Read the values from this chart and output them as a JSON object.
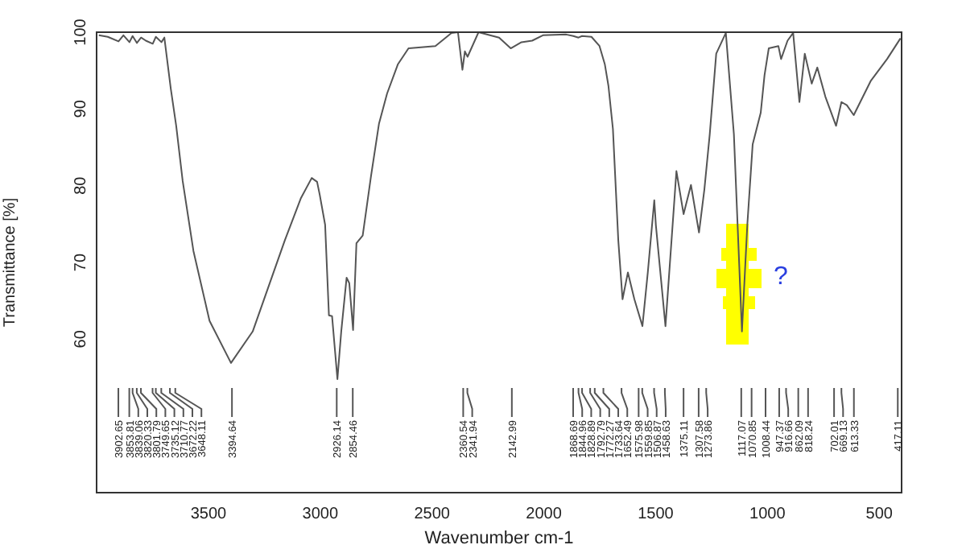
{
  "chart_data": {
    "type": "line",
    "xlabel": "Wavenumber cm-1",
    "ylabel": "Transmittance [%]",
    "xlim": [
      4000,
      400
    ],
    "ylim": [
      40,
      100
    ],
    "xticks": [
      3500,
      3000,
      2500,
      2000,
      1500,
      1000,
      500
    ],
    "yticks": [
      60,
      70,
      80,
      90,
      100
    ],
    "grid": false,
    "legend": false,
    "marker": "none",
    "line_style": "solid",
    "series": [
      {
        "color": "#555555",
        "x": [
          3990,
          3950,
          3902,
          3880,
          3853,
          3839,
          3820,
          3801,
          3780,
          3749,
          3735,
          3710,
          3697,
          3688,
          3668,
          3644,
          3615,
          3567,
          3495,
          3399,
          3302,
          3158,
          3086,
          3038,
          3014,
          3002,
          2978,
          2961,
          2947,
          2923,
          2906,
          2882,
          2870,
          2853,
          2838,
          2810,
          2773,
          2737,
          2701,
          2653,
          2605,
          2485,
          2413,
          2384,
          2364,
          2353,
          2341,
          2292,
          2200,
          2148,
          2100,
          2052,
          2004,
          1900,
          1868,
          1845,
          1829,
          1787,
          1751,
          1727,
          1711,
          1691,
          1667,
          1648,
          1624,
          1595,
          1559,
          1535,
          1506,
          1499,
          1456,
          1407,
          1375,
          1342,
          1306,
          1282,
          1258,
          1229,
          1186,
          1150,
          1114,
          1090,
          1066,
          1030,
          1013,
          994,
          951,
          939,
          910,
          885,
          857,
          833,
          802,
          777,
          741,
          693,
          669,
          645,
          614,
          537,
          465,
          405
        ],
        "values": [
          99.6,
          99.4,
          98.8,
          99.6,
          98.7,
          99.5,
          98.6,
          99.3,
          98.9,
          98.5,
          99.4,
          98.7,
          99.3,
          97.2,
          92.6,
          87.8,
          80.6,
          71.5,
          62.4,
          56.9,
          61,
          72.9,
          78.4,
          81,
          80.5,
          78.8,
          74.9,
          63.1,
          63,
          54.8,
          61,
          68,
          67.3,
          61.2,
          72.5,
          73.5,
          81.2,
          88.1,
          92,
          95.8,
          97.9,
          98.2,
          99.9,
          100,
          95.1,
          97.5,
          96.8,
          100,
          99.3,
          97.9,
          98.7,
          98.9,
          99.6,
          99.7,
          99.5,
          99.3,
          99.5,
          99.4,
          98.2,
          95.8,
          93,
          87.4,
          72.9,
          65.2,
          68.7,
          65.2,
          61.7,
          68.7,
          78.1,
          74.9,
          61.7,
          81.9,
          76.3,
          80.1,
          73.9,
          79.5,
          86.7,
          97.2,
          99.9,
          86.7,
          61,
          74.9,
          85.4,
          89.5,
          94.4,
          97.9,
          98.2,
          96.5,
          98.9,
          99.9,
          90.9,
          97.2,
          93.3,
          95.4,
          91.6,
          87.8,
          90.9,
          90.5,
          89.2,
          93.7,
          96.5,
          99.2
        ]
      }
    ],
    "annotations": [
      {
        "text": "3902.65",
        "x": 3902.65
      },
      {
        "text": "3853.81",
        "x": 3853.81
      },
      {
        "text": "3839.06",
        "x": 3839.06
      },
      {
        "text": "3820.33",
        "x": 3820.33
      },
      {
        "text": "3801.79",
        "x": 3801.79
      },
      {
        "text": "3749.65",
        "x": 3749.65
      },
      {
        "text": "3735.12",
        "x": 3735.12
      },
      {
        "text": "3710.77",
        "x": 3710.77
      },
      {
        "text": "3672.22",
        "x": 3672.22
      },
      {
        "text": "3648.11",
        "x": 3648.11
      },
      {
        "text": "3394.64",
        "x": 3394.64
      },
      {
        "text": "2926.14",
        "x": 2926.14
      },
      {
        "text": "2854.46",
        "x": 2854.46
      },
      {
        "text": "2360.54",
        "x": 2360.54
      },
      {
        "text": "2341.94",
        "x": 2341.94
      },
      {
        "text": "2142.99",
        "x": 2142.99
      },
      {
        "text": "1868.69",
        "x": 1868.69
      },
      {
        "text": "1844.96",
        "x": 1844.96
      },
      {
        "text": "1828.89",
        "x": 1828.89
      },
      {
        "text": "1792.79",
        "x": 1792.79
      },
      {
        "text": "1772.27",
        "x": 1772.27
      },
      {
        "text": "1733.64",
        "x": 1733.64
      },
      {
        "text": "1652.49",
        "x": 1652.49
      },
      {
        "text": "1575.98",
        "x": 1575.98
      },
      {
        "text": "1559.85",
        "x": 1559.85
      },
      {
        "text": "1506.87",
        "x": 1506.87
      },
      {
        "text": "1458.63",
        "x": 1458.63
      },
      {
        "text": "1375.11",
        "x": 1375.11
      },
      {
        "text": "1307.58",
        "x": 1307.58
      },
      {
        "text": "1273.86",
        "x": 1273.86
      },
      {
        "text": "1117.07",
        "x": 1117.07
      },
      {
        "text": "1070.85",
        "x": 1070.85
      },
      {
        "text": "1008.44",
        "x": 1008.44
      },
      {
        "text": "947.37",
        "x": 947.37
      },
      {
        "text": "916.66",
        "x": 916.66
      },
      {
        "text": "862.09",
        "x": 862.09
      },
      {
        "text": "818.24",
        "x": 818.24
      },
      {
        "text": "702.01",
        "x": 702.01
      },
      {
        "text": "669.13",
        "x": 669.13
      },
      {
        "text": "613.33",
        "x": 613.33
      },
      {
        "text": "417.11",
        "x": 417.11
      },
      "?"
    ]
  }
}
